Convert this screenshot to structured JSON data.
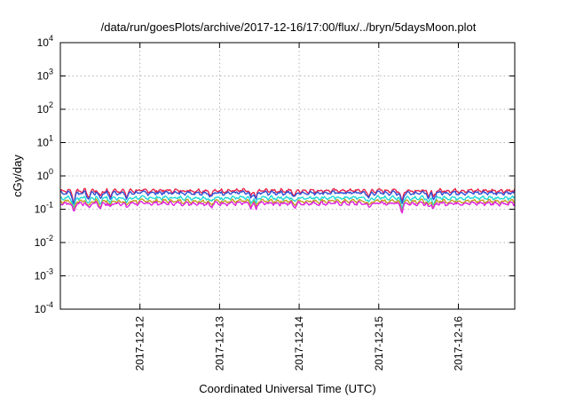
{
  "chart_data": {
    "type": "line",
    "title": "/data/run/goesPlots/archive/2017-12-16/17:00/flux/../bryn/5daysMoon.plot",
    "xlabel": "Coordinated Universal Time (UTC)",
    "ylabel": "cGy/day",
    "yscale": "log",
    "ylim": [
      0.0001,
      10000
    ],
    "xlim": [
      "2017-12-11T00:00",
      "2017-12-16T17:00"
    ],
    "grid": true,
    "y_ticks": [
      {
        "base": "10",
        "exp": "-4",
        "value": 0.0001
      },
      {
        "base": "10",
        "exp": "-3",
        "value": 0.001
      },
      {
        "base": "10",
        "exp": "-2",
        "value": 0.01
      },
      {
        "base": "10",
        "exp": "-1",
        "value": 0.1
      },
      {
        "base": "10",
        "exp": "0",
        "value": 1
      },
      {
        "base": "10",
        "exp": "1",
        "value": 10
      },
      {
        "base": "10",
        "exp": "2",
        "value": 100
      },
      {
        "base": "10",
        "exp": "3",
        "value": 1000
      },
      {
        "base": "10",
        "exp": "4",
        "value": 10000
      }
    ],
    "x_ticks": [
      {
        "label": "2017-12-12",
        "value": "2017-12-12T00:00"
      },
      {
        "label": "2017-12-13",
        "value": "2017-12-13T00:00"
      },
      {
        "label": "2017-12-14",
        "value": "2017-12-14T00:00"
      },
      {
        "label": "2017-12-15",
        "value": "2017-12-15T00:00"
      },
      {
        "label": "2017-12-16",
        "value": "2017-12-16T00:00"
      }
    ],
    "series": [
      {
        "color": "#e8234a",
        "baseline": 0.36,
        "dip": 0.55
      },
      {
        "color": "#3050d8",
        "baseline": 0.31,
        "dip": 0.5
      },
      {
        "color": "#20d8d8",
        "baseline": 0.22,
        "dip": 0.45
      },
      {
        "color": "#c0a020",
        "baseline": 0.175,
        "dip": 0.4
      },
      {
        "color": "#e020e0",
        "baseline": 0.15,
        "dip": 0.25
      }
    ],
    "dips": [
      {
        "time": "2017-12-11T04:00",
        "factor": 0.22
      },
      {
        "time": "2017-12-11T08:30",
        "factor": 0.5
      },
      {
        "time": "2017-12-11T12:00",
        "factor": 0.55
      },
      {
        "time": "2017-12-11T15:00",
        "factor": 0.6
      },
      {
        "time": "2017-12-11T20:00",
        "factor": 0.55
      },
      {
        "time": "2017-12-12T21:30",
        "factor": 0.6
      },
      {
        "time": "2017-12-13T09:30",
        "factor": 0.5
      },
      {
        "time": "2017-12-13T11:00",
        "factor": 0.55
      },
      {
        "time": "2017-12-13T22:30",
        "factor": 0.6
      },
      {
        "time": "2017-12-14T21:00",
        "factor": 0.55
      },
      {
        "time": "2017-12-15T07:00",
        "factor": 0.25
      },
      {
        "time": "2017-12-15T15:00",
        "factor": 0.5
      },
      {
        "time": "2017-12-15T16:30",
        "factor": 0.55
      }
    ]
  }
}
